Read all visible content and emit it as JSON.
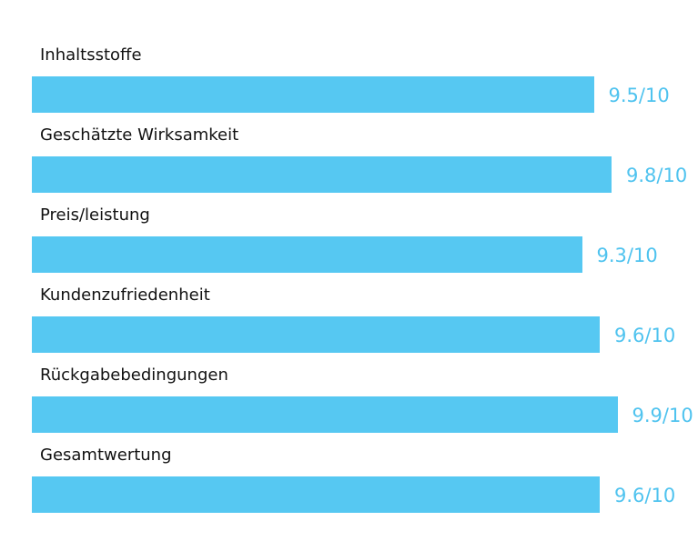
{
  "chart_data": {
    "type": "bar",
    "orientation": "horizontal",
    "categories": [
      "Inhaltsstoffe",
      "Geschätzte Wirksamkeit",
      "Preis/leistung",
      "Kundenzufriedenheit",
      "Rückgabebedingungen",
      "Gesamtwertung"
    ],
    "values": [
      9.5,
      9.8,
      9.3,
      9.6,
      9.9,
      9.6
    ],
    "value_labels": [
      "9.5/10",
      "9.8/10",
      "9.3/10",
      "9.6/10",
      "9.9/10",
      "9.6/10"
    ],
    "xlim": [
      0,
      10
    ],
    "grid": false,
    "bar_color": "#56c8f2",
    "value_label_color": "#4fc3ef",
    "label_color": "#111111"
  }
}
